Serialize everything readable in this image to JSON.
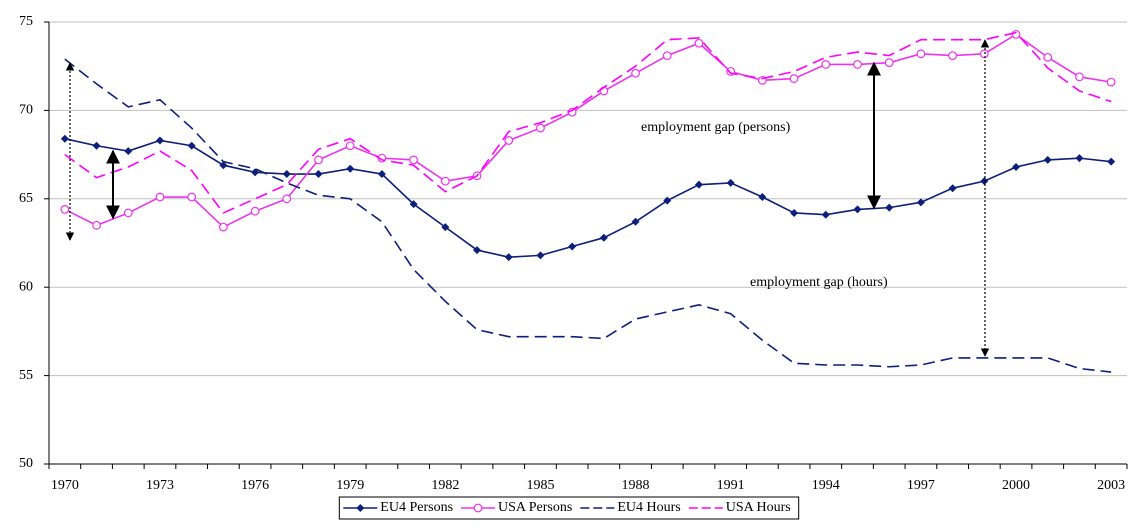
{
  "chart_data": {
    "type": "line",
    "categories": [
      "1970",
      null,
      null,
      "1973",
      null,
      null,
      "1976",
      null,
      null,
      "1979",
      null,
      null,
      "1982",
      null,
      null,
      "1985",
      null,
      null,
      "1988",
      null,
      null,
      "1991",
      null,
      null,
      "1994",
      null,
      null,
      "1997",
      null,
      null,
      "2000",
      null,
      null,
      "2003"
    ],
    "series": [
      {
        "name": "EU4 Persons",
        "color": "#0d1f7a",
        "dash": false,
        "marker": "diamond",
        "values": [
          68.4,
          68.0,
          67.7,
          68.3,
          68.0,
          66.9,
          66.5,
          66.4,
          66.4,
          66.7,
          66.4,
          64.7,
          63.4,
          62.1,
          61.7,
          61.8,
          62.3,
          62.8,
          63.7,
          64.9,
          65.8,
          65.9,
          65.1,
          64.2,
          64.1,
          64.4,
          64.5,
          64.8,
          65.6,
          66.0,
          66.8,
          67.2,
          67.3,
          67.1
        ]
      },
      {
        "name": "USA Persons",
        "color": "#ee33ee",
        "dash": false,
        "marker": "circle",
        "values": [
          64.4,
          63.5,
          64.2,
          65.1,
          65.1,
          63.4,
          64.3,
          65.0,
          67.2,
          68.0,
          67.3,
          67.2,
          66.0,
          66.3,
          68.3,
          69.0,
          69.9,
          71.1,
          72.1,
          73.1,
          73.8,
          72.2,
          71.7,
          71.8,
          72.6,
          72.6,
          72.7,
          73.2,
          73.1,
          73.2,
          74.3,
          73.0,
          71.9,
          71.6
        ]
      },
      {
        "name": "EU4 Hours",
        "color": "#0d1f7a",
        "dash": true,
        "marker": null,
        "values": [
          72.9,
          71.5,
          70.2,
          70.6,
          69.0,
          67.1,
          66.7,
          65.9,
          65.2,
          65.0,
          63.7,
          61.0,
          59.2,
          57.6,
          57.2,
          57.2,
          57.2,
          57.1,
          58.2,
          58.6,
          59.0,
          58.5,
          57.0,
          55.7,
          55.6,
          55.6,
          55.5,
          55.6,
          56.0,
          56.0,
          56.0,
          56.0,
          55.4,
          55.2
        ]
      },
      {
        "name": "USA Hours",
        "color": "#ff00ff",
        "dash": true,
        "marker": null,
        "values": [
          67.5,
          66.2,
          66.8,
          67.7,
          66.6,
          64.2,
          65.0,
          65.8,
          67.8,
          68.4,
          67.2,
          66.9,
          65.4,
          66.3,
          68.8,
          69.3,
          70.0,
          71.3,
          72.5,
          74.0,
          74.1,
          72.1,
          71.8,
          72.2,
          73.0,
          73.3,
          73.1,
          74.0,
          74.0,
          74.0,
          74.4,
          72.4,
          71.1,
          70.5
        ]
      }
    ],
    "annotations": [
      "employment gap (persons)",
      "employment gap (hours)"
    ],
    "ylim": [
      50,
      75
    ],
    "yticks": [
      50,
      55,
      60,
      65,
      70,
      75
    ],
    "grid": true,
    "legend": "bottom"
  }
}
